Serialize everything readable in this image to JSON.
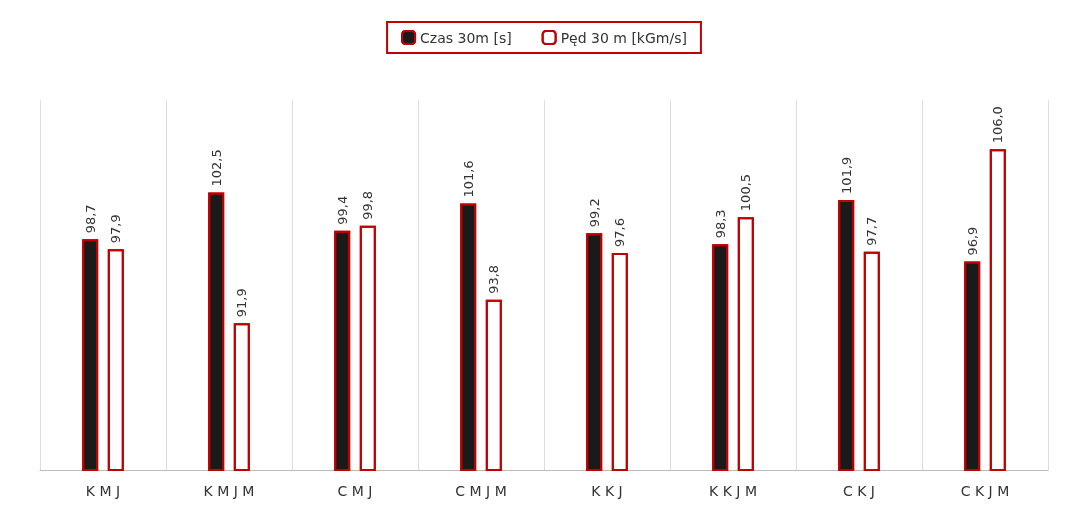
{
  "chart_data": {
    "type": "bar",
    "categories": [
      "K M J",
      "K M J M",
      "C M J",
      "C M J M",
      "K K J",
      "K K J M",
      "C K J",
      "C K J M"
    ],
    "series": [
      {
        "name": "Czas 30m [s]",
        "color": "#1a1a1a",
        "values": [
          98.7,
          102.5,
          99.4,
          101.6,
          99.2,
          98.3,
          101.9,
          96.9
        ],
        "value_labels": [
          "98,7",
          "102,5",
          "99,4",
          "101,6",
          "99,2",
          "98,3",
          "101,9",
          "96,9"
        ]
      },
      {
        "name": "Pęd 30 m [kGm/s]",
        "color": "#ffffff",
        "values": [
          97.9,
          91.9,
          99.8,
          93.8,
          97.6,
          100.5,
          97.7,
          106.0
        ],
        "value_labels": [
          "97,9",
          "91,9",
          "99,8",
          "93,8",
          "97,6",
          "100,5",
          "97,7",
          "106,0"
        ]
      }
    ],
    "ylim": [
      80,
      110
    ],
    "grid": "x",
    "legend": "top"
  }
}
